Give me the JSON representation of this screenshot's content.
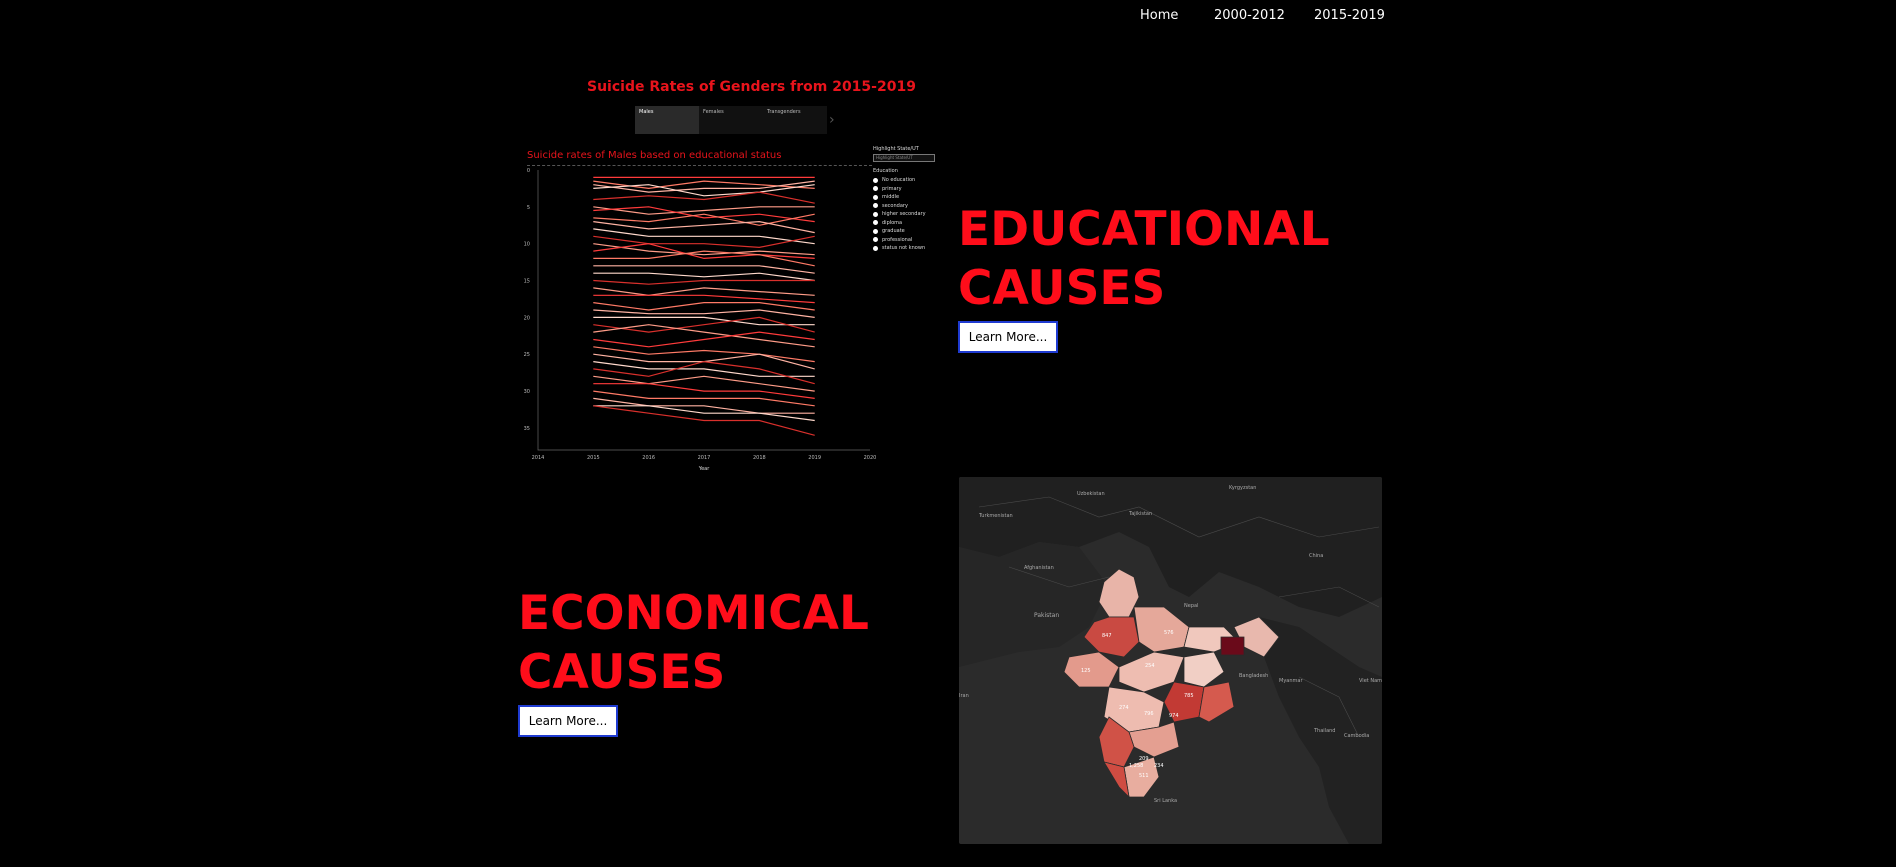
{
  "nav": {
    "home": "Home",
    "range1": "2000-2012",
    "range2": "2015-2019"
  },
  "gender_chart": {
    "title": "Suicide Rates of Genders from 2015-2019",
    "tabs": [
      "Males",
      "Females",
      "Transgenders"
    ],
    "subtitle": "Suicide rates of Males based on educational status",
    "legend_title": "Highlight State/UT",
    "legend_placeholder": "Highlight State/UT",
    "education_heading": "Education",
    "education_options": [
      "No education",
      "primary",
      "middle",
      "secondary",
      "higher secondary",
      "diploma",
      "graduate",
      "professional",
      "status not known"
    ]
  },
  "chart_data": {
    "type": "line",
    "x": [
      2015,
      2016,
      2017,
      2018,
      2019
    ],
    "x_ticks": [
      "2014",
      "2015",
      "2016",
      "2017",
      "2018",
      "2019",
      "2020"
    ],
    "xlabel": "Year",
    "y_ticks": [
      "0",
      "5",
      "10",
      "15",
      "20",
      "25",
      "30",
      "35"
    ],
    "ylim": [
      0,
      38
    ],
    "y_inverted": true,
    "colors": [
      "#ff3b3b",
      "#ff7a66",
      "#ffb3a3",
      "#ffd9cc",
      "#d9302c",
      "#ff9c88"
    ],
    "series": [
      {
        "values": [
          1,
          1,
          1,
          1,
          1
        ]
      },
      {
        "values": [
          1.5,
          2.5,
          1.5,
          2,
          2.5
        ]
      },
      {
        "values": [
          2,
          3,
          2.5,
          2.5,
          1.5
        ]
      },
      {
        "values": [
          2.5,
          2,
          3.5,
          3,
          2
        ]
      },
      {
        "values": [
          4,
          3.5,
          4,
          3,
          4.5
        ]
      },
      {
        "values": [
          5,
          6,
          5.5,
          5,
          5
        ]
      },
      {
        "values": [
          5.5,
          5,
          6.5,
          6,
          7
        ]
      },
      {
        "values": [
          6.5,
          7,
          6,
          7.5,
          6
        ]
      },
      {
        "values": [
          7,
          8,
          7.5,
          7,
          8.5
        ]
      },
      {
        "values": [
          8,
          9,
          9,
          9,
          10
        ]
      },
      {
        "values": [
          9,
          10,
          10,
          10.5,
          9
        ]
      },
      {
        "values": [
          10,
          11,
          11.5,
          11,
          11.5
        ]
      },
      {
        "values": [
          11,
          10,
          12,
          11.5,
          12
        ]
      },
      {
        "values": [
          12,
          12,
          11,
          11.5,
          13
        ]
      },
      {
        "values": [
          13,
          13,
          13,
          13,
          14
        ]
      },
      {
        "values": [
          14,
          14,
          14.5,
          14,
          15
        ]
      },
      {
        "values": [
          15,
          15.5,
          15,
          15,
          15
        ]
      },
      {
        "values": [
          16,
          17,
          16,
          16.5,
          17
        ]
      },
      {
        "values": [
          17,
          17,
          17,
          17.5,
          18
        ]
      },
      {
        "values": [
          18,
          19,
          18,
          18,
          19
        ]
      },
      {
        "values": [
          19,
          19.5,
          19.5,
          19,
          20
        ]
      },
      {
        "values": [
          20,
          20,
          20,
          21,
          21
        ]
      },
      {
        "values": [
          21,
          22,
          21,
          20,
          22
        ]
      },
      {
        "values": [
          22,
          21,
          22,
          23,
          24
        ]
      },
      {
        "values": [
          23,
          24,
          23,
          22,
          23
        ]
      },
      {
        "values": [
          24,
          25,
          24.5,
          25,
          26
        ]
      },
      {
        "values": [
          25,
          26,
          26,
          25,
          27
        ]
      },
      {
        "values": [
          26,
          27,
          27,
          28,
          28
        ]
      },
      {
        "values": [
          27,
          28,
          26,
          27,
          29
        ]
      },
      {
        "values": [
          28,
          29,
          28,
          29,
          30
        ]
      },
      {
        "values": [
          29,
          29,
          30,
          30,
          31
        ]
      },
      {
        "values": [
          30,
          31,
          31,
          31,
          32
        ]
      },
      {
        "values": [
          31,
          32,
          32,
          33,
          33
        ]
      },
      {
        "values": [
          32,
          32,
          33,
          33,
          34
        ]
      },
      {
        "values": [
          32,
          33,
          34,
          34,
          36
        ]
      }
    ]
  },
  "educational": {
    "heading_line1": "EDUCATIONAL",
    "heading_line2": "CAUSES",
    "button": "Learn More..."
  },
  "economical": {
    "heading_line1": "ECONOMICAL",
    "heading_line2": "CAUSES",
    "button": "Learn More..."
  },
  "map": {
    "labels": [
      "Uzbekistan",
      "Kyrgyzstan",
      "Turkmenistan",
      "Tajikistan",
      "Afghanistan",
      "China",
      "Pakistan",
      "Nepal",
      "Bangladesh",
      "Myanmar",
      "Viet Nam",
      "Thailand",
      "Cambodia",
      "Sri Lanka",
      "Iran"
    ],
    "values": [
      "847",
      "576",
      "1,258",
      "974",
      "125",
      "254",
      "274",
      "796",
      "785",
      "209",
      "234",
      "511"
    ]
  }
}
